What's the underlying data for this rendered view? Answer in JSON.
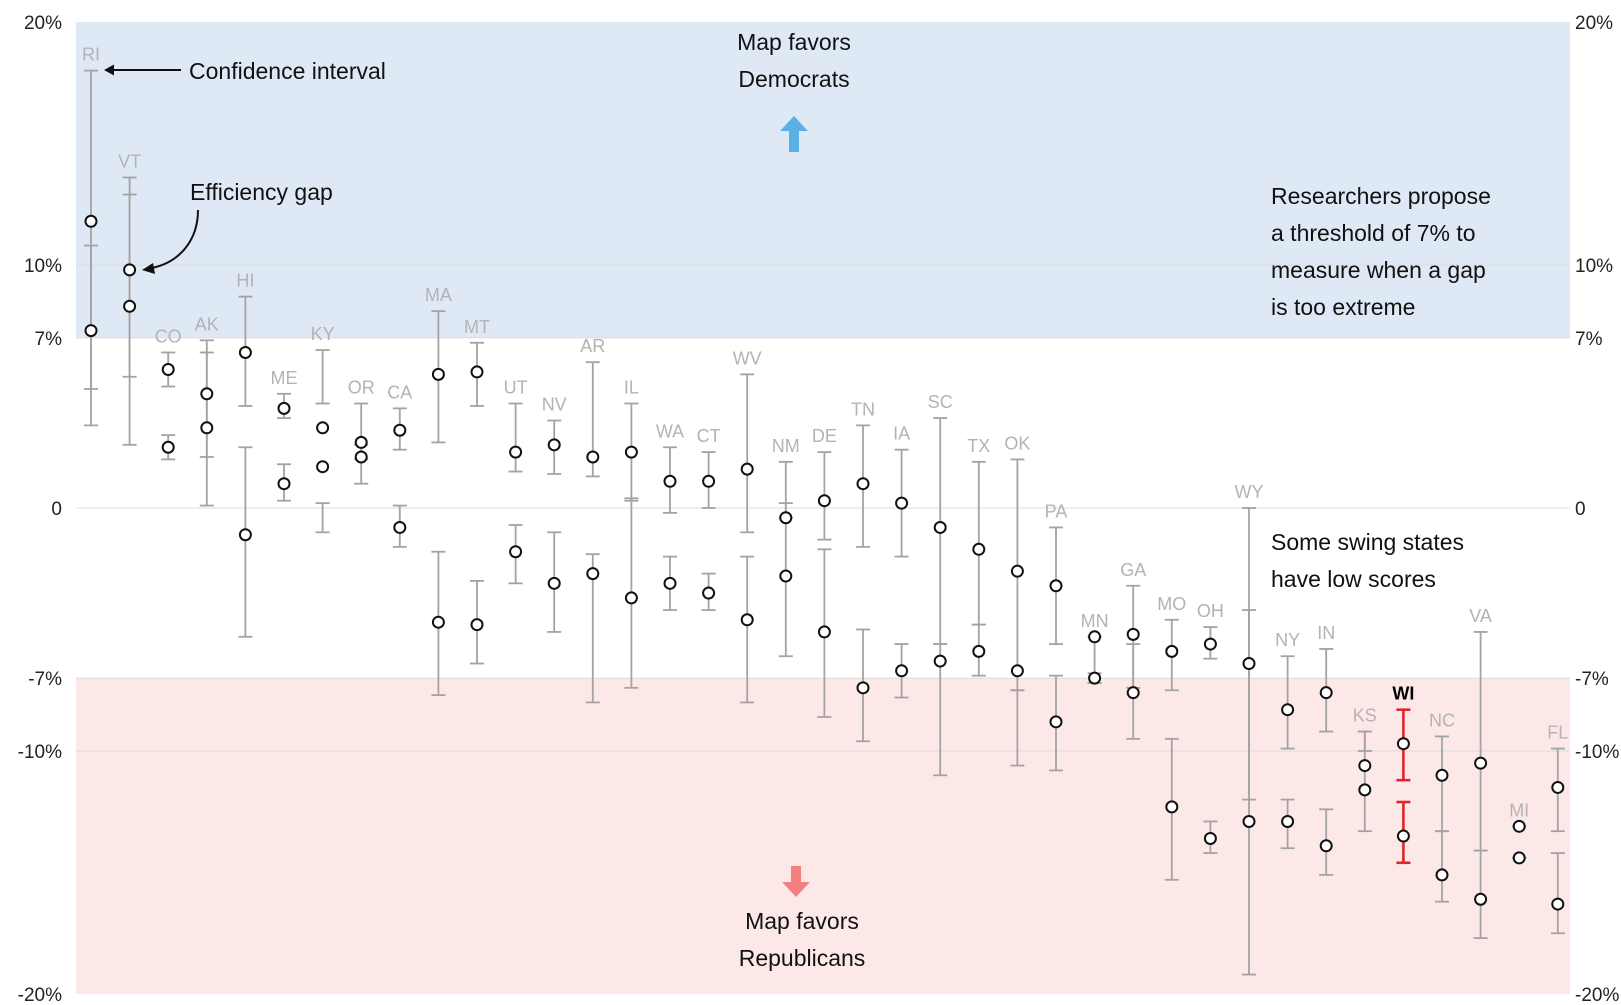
{
  "chart_data": {
    "type": "scatter",
    "title": "",
    "xlabel": "",
    "ylabel": "",
    "ylim": [
      -20,
      20
    ],
    "y_ticks": [
      {
        "value": 20,
        "label": "20%"
      },
      {
        "value": 10,
        "label": "10%"
      },
      {
        "value": 7,
        "label": "7%"
      },
      {
        "value": 0,
        "label": "0"
      },
      {
        "value": -7,
        "label": "-7%"
      },
      {
        "value": -10,
        "label": "-10%"
      },
      {
        "value": -20,
        "label": "-20%"
      }
    ],
    "threshold": 7,
    "grid": true,
    "colors": {
      "favors_democrats_band": "#dfe9f6",
      "favors_republicans_band": "#fde8e8",
      "error_bar": "#a3a3a3",
      "highlight": "#e0252b",
      "up_arrow": "#5ab0e6",
      "down_arrow": "#f28080"
    },
    "states": [
      {
        "label": "RI",
        "points": [
          {
            "value": 11.8,
            "ci": [
              4.9,
              18.0
            ]
          },
          {
            "value": 7.3,
            "ci": [
              3.4,
              10.8
            ]
          }
        ]
      },
      {
        "label": "VT",
        "points": [
          {
            "value": 9.8,
            "ci": [
              5.4,
              13.6
            ]
          },
          {
            "value": 8.3,
            "ci": [
              2.6,
              12.9
            ]
          }
        ]
      },
      {
        "label": "CO",
        "points": [
          {
            "value": 5.7,
            "ci": [
              5.0,
              6.4
            ]
          },
          {
            "value": 2.5,
            "ci": [
              2.0,
              3.0
            ]
          }
        ]
      },
      {
        "label": "AK",
        "points": [
          {
            "value": 4.7,
            "ci": [
              2.1,
              6.9
            ]
          },
          {
            "value": 3.3,
            "ci": [
              0.1,
              6.4
            ]
          }
        ]
      },
      {
        "label": "HI",
        "points": [
          {
            "value": 6.4,
            "ci": [
              4.2,
              8.7
            ]
          },
          {
            "value": -1.1,
            "ci": [
              -5.3,
              2.5
            ]
          }
        ]
      },
      {
        "label": "ME",
        "points": [
          {
            "value": 4.1,
            "ci": [
              3.7,
              4.7
            ]
          },
          {
            "value": 1.0,
            "ci": [
              0.3,
              1.8
            ]
          }
        ]
      },
      {
        "label": "KY",
        "points": [
          {
            "value": 3.3,
            "ci": [
              4.3,
              6.5
            ]
          },
          {
            "value": 1.7,
            "ci": [
              -1.0,
              0.2
            ]
          }
        ]
      },
      {
        "label": "OR",
        "points": [
          {
            "value": 2.7,
            "ci": [
              2.0,
              4.3
            ]
          },
          {
            "value": 2.1,
            "ci": [
              1.0,
              2.6
            ]
          }
        ]
      },
      {
        "label": "CA",
        "points": [
          {
            "value": 3.2,
            "ci": [
              2.4,
              4.1
            ]
          },
          {
            "value": -0.8,
            "ci": [
              -1.6,
              0.1
            ]
          }
        ]
      },
      {
        "label": "MA",
        "points": [
          {
            "value": 5.5,
            "ci": [
              2.7,
              8.1
            ]
          },
          {
            "value": -4.7,
            "ci": [
              -7.7,
              -1.8
            ]
          }
        ]
      },
      {
        "label": "MT",
        "points": [
          {
            "value": 5.6,
            "ci": [
              4.2,
              6.8
            ]
          },
          {
            "value": -4.8,
            "ci": [
              -6.4,
              -3.0
            ]
          }
        ]
      },
      {
        "label": "UT",
        "points": [
          {
            "value": 2.3,
            "ci": [
              1.5,
              4.3
            ]
          },
          {
            "value": -1.8,
            "ci": [
              -3.1,
              -0.7
            ]
          }
        ]
      },
      {
        "label": "NV",
        "points": [
          {
            "value": 2.6,
            "ci": [
              1.4,
              3.6
            ]
          },
          {
            "value": -3.1,
            "ci": [
              -5.1,
              -1.0
            ]
          }
        ]
      },
      {
        "label": "AR",
        "points": [
          {
            "value": 2.1,
            "ci": [
              1.3,
              6.0
            ]
          },
          {
            "value": -2.7,
            "ci": [
              -8.0,
              -1.9
            ]
          }
        ]
      },
      {
        "label": "IL",
        "points": [
          {
            "value": 2.3,
            "ci": [
              0.3,
              4.3
            ]
          },
          {
            "value": -3.7,
            "ci": [
              -7.4,
              0.4
            ]
          }
        ]
      },
      {
        "label": "WA",
        "points": [
          {
            "value": 1.1,
            "ci": [
              -0.2,
              2.5
            ]
          },
          {
            "value": -3.1,
            "ci": [
              -4.2,
              -2.0
            ]
          }
        ]
      },
      {
        "label": "CT",
        "points": [
          {
            "value": 1.1,
            "ci": [
              0.0,
              2.3
            ]
          },
          {
            "value": -3.5,
            "ci": [
              -4.2,
              -2.7
            ]
          }
        ]
      },
      {
        "label": "WV",
        "points": [
          {
            "value": 1.6,
            "ci": [
              -1.0,
              5.5
            ]
          },
          {
            "value": -4.6,
            "ci": [
              -8.0,
              -2.0
            ]
          }
        ]
      },
      {
        "label": "NM",
        "points": [
          {
            "value": -0.4,
            "ci": [
              -0.4,
              1.9
            ]
          },
          {
            "value": -2.8,
            "ci": [
              -6.1,
              0.2
            ]
          }
        ]
      },
      {
        "label": "DE",
        "points": [
          {
            "value": 0.3,
            "ci": [
              -1.3,
              2.3
            ]
          },
          {
            "value": -5.1,
            "ci": [
              -8.6,
              -1.7
            ]
          }
        ]
      },
      {
        "label": "TN",
        "points": [
          {
            "value": 1.0,
            "ci": [
              -1.6,
              3.4
            ]
          },
          {
            "value": -7.4,
            "ci": [
              -9.6,
              -5.0
            ]
          }
        ]
      },
      {
        "label": "IA",
        "points": [
          {
            "value": 0.2,
            "ci": [
              -2.0,
              2.4
            ]
          },
          {
            "value": -6.7,
            "ci": [
              -7.8,
              -5.6
            ]
          }
        ]
      },
      {
        "label": "SC",
        "points": [
          {
            "value": -0.8,
            "ci": [
              -5.6,
              3.7
            ]
          },
          {
            "value": -6.3,
            "ci": [
              -11.0,
              -5.6
            ]
          }
        ]
      },
      {
        "label": "TX",
        "points": [
          {
            "value": -1.7,
            "ci": [
              -4.8,
              1.9
            ]
          },
          {
            "value": -5.9,
            "ci": [
              -6.9,
              -4.8
            ]
          }
        ]
      },
      {
        "label": "OK",
        "points": [
          {
            "value": -2.6,
            "ci": [
              -7.5,
              2.0
            ]
          },
          {
            "value": -6.7,
            "ci": [
              -10.6,
              -7.5
            ]
          }
        ]
      },
      {
        "label": "PA",
        "points": [
          {
            "value": -3.2,
            "ci": [
              -5.6,
              -0.8
            ]
          },
          {
            "value": -8.8,
            "ci": [
              -10.8,
              -6.9
            ]
          }
        ]
      },
      {
        "label": "MN",
        "points": [
          {
            "value": -5.3,
            "ci": [
              -7.2,
              -5.3
            ]
          },
          {
            "value": -7.0,
            "ci": [
              -7.2,
              -6.8
            ]
          }
        ]
      },
      {
        "label": "GA",
        "points": [
          {
            "value": -5.2,
            "ci": [
              -9.5,
              -3.2
            ]
          },
          {
            "value": -7.6,
            "ci": [
              -7.4,
              -5.6
            ]
          }
        ]
      },
      {
        "label": "MO",
        "points": [
          {
            "value": -5.9,
            "ci": [
              -7.5,
              -4.6
            ]
          },
          {
            "value": -12.3,
            "ci": [
              -15.3,
              -9.5
            ]
          }
        ]
      },
      {
        "label": "OH",
        "points": [
          {
            "value": -5.6,
            "ci": [
              -6.2,
              -4.9
            ]
          },
          {
            "value": -13.6,
            "ci": [
              -14.2,
              -12.9
            ]
          }
        ]
      },
      {
        "label": "WY",
        "points": [
          {
            "value": -6.4,
            "ci": [
              -19.2,
              0.0
            ]
          },
          {
            "value": -12.9,
            "ci": [
              -12.0,
              -4.2
            ]
          }
        ]
      },
      {
        "label": "NY",
        "points": [
          {
            "value": -8.3,
            "ci": [
              -9.9,
              -6.1
            ]
          },
          {
            "value": -12.9,
            "ci": [
              -14.0,
              -12.0
            ]
          }
        ]
      },
      {
        "label": "IN",
        "points": [
          {
            "value": -7.6,
            "ci": [
              -9.2,
              -5.8
            ]
          },
          {
            "value": -13.9,
            "ci": [
              -15.1,
              -12.4
            ]
          }
        ]
      },
      {
        "label": "KS",
        "points": [
          {
            "value": -10.6,
            "ci": [
              -13.3,
              -9.2
            ]
          },
          {
            "value": -11.6,
            "ci": [
              -10.0,
              -9.2
            ]
          }
        ]
      },
      {
        "label": "WI",
        "highlight": true,
        "points": [
          {
            "value": -9.7,
            "ci": [
              -11.2,
              -8.3
            ]
          },
          {
            "value": -13.5,
            "ci": [
              -14.6,
              -12.1
            ]
          }
        ]
      },
      {
        "label": "NC",
        "points": [
          {
            "value": -11.0,
            "ci": [
              -13.3,
              -9.4
            ]
          },
          {
            "value": -15.1,
            "ci": [
              -16.2,
              -13.3
            ]
          }
        ]
      },
      {
        "label": "VA",
        "points": [
          {
            "value": -10.5,
            "ci": [
              -14.1,
              -5.1
            ]
          },
          {
            "value": -16.1,
            "ci": [
              -17.7,
              -14.1
            ]
          }
        ]
      },
      {
        "label": "MI",
        "points": [
          {
            "value": -13.1,
            "ci": [
              -13.1,
              -13.1
            ]
          },
          {
            "value": -14.4,
            "ci": [
              -14.4,
              -14.4
            ]
          }
        ]
      },
      {
        "label": "FL",
        "points": [
          {
            "value": -11.5,
            "ci": [
              -13.3,
              -9.9
            ]
          },
          {
            "value": -16.3,
            "ci": [
              -17.5,
              -14.2
            ]
          }
        ]
      }
    ]
  },
  "annotations": {
    "confidence_interval": "Confidence interval",
    "efficiency_gap": "Efficiency gap",
    "favors_democrats": [
      "Map favors",
      "Democrats"
    ],
    "favors_republicans": [
      "Map favors",
      "Republicans"
    ],
    "threshold_note": [
      "Researchers propose",
      "a threshold of 7% to",
      "measure when a gap",
      "is too extreme"
    ],
    "swing_note": [
      "Some swing states",
      "have low scores"
    ]
  }
}
